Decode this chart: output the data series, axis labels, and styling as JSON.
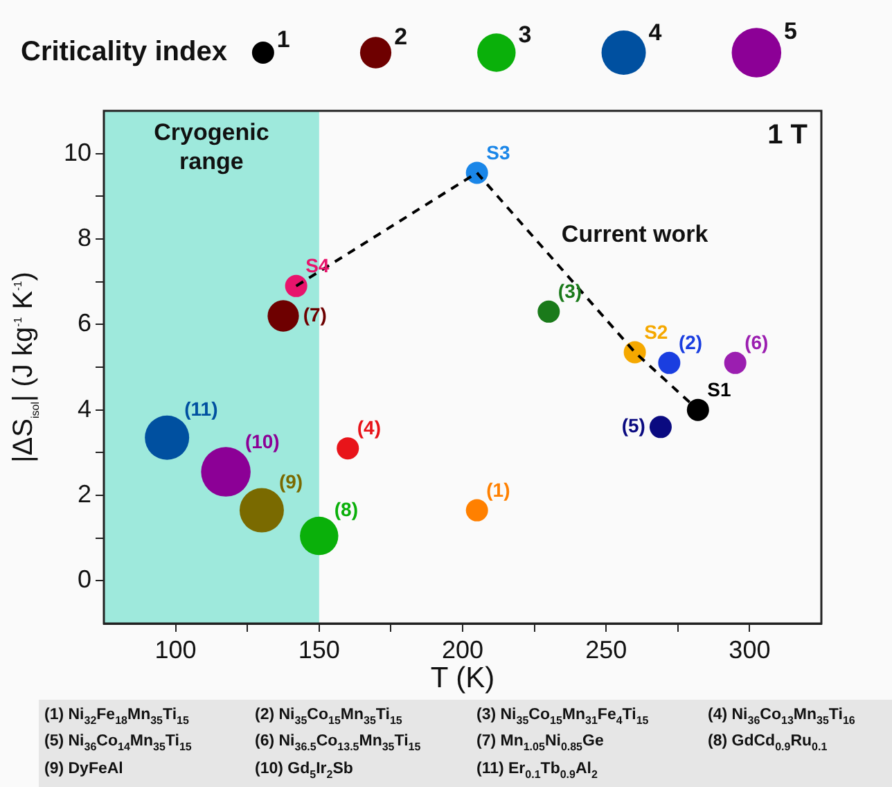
{
  "chart_data": {
    "type": "bubble",
    "legend_title": "Criticality index",
    "size_legend": [
      1,
      2,
      3,
      4,
      5
    ],
    "xlabel": "T (K)",
    "ylabel": "|ΔS$_{isol}$| (J kg$^{-1}$ K$^{-1}$)",
    "xlim": [
      75,
      325
    ],
    "xticks": [
      100,
      {
        "value": 125,
        "label": null
      },
      150,
      {
        "value": 175,
        "label": null
      },
      200,
      {
        "value": 225,
        "label": null
      },
      250,
      {
        "value": 275,
        "label": null
      },
      300
    ],
    "ylim": [
      -1,
      11
    ],
    "yticks": [
      0,
      {
        "value": 1,
        "label": null
      },
      2,
      {
        "value": 3,
        "label": null
      },
      4,
      {
        "value": 5,
        "label": null
      },
      6,
      {
        "value": 7,
        "label": null
      },
      8,
      {
        "value": 9,
        "label": null
      },
      10
    ],
    "grid": false,
    "legend": "top",
    "bands": [
      {
        "axis": "x",
        "from": 75,
        "to": 150,
        "label": "Cryogenic range",
        "color": "#9ee9dc"
      }
    ],
    "series": [
      {
        "type": "line",
        "color": "#000000",
        "x": [
          142,
          205,
          260,
          282
        ],
        "values": [
          6.9,
          9.55,
          5.35,
          4.0
        ],
        "line_style": "dashed",
        "marker": "none"
      },
      {
        "name": "S1",
        "color": "#000000",
        "x": [
          282
        ],
        "values": [
          4.0
        ],
        "sizes": [
          1
        ],
        "marker": "circle"
      },
      {
        "name": "S2",
        "color": "#f5a800",
        "x": [
          260
        ],
        "values": [
          5.35
        ],
        "sizes": [
          1
        ],
        "marker": "circle"
      },
      {
        "name": "S3",
        "color": "#1a86e8",
        "x": [
          205
        ],
        "values": [
          9.55
        ],
        "sizes": [
          1
        ],
        "marker": "circle"
      },
      {
        "name": "S4",
        "color": "#e8146c",
        "x": [
          142
        ],
        "values": [
          6.9
        ],
        "sizes": [
          1
        ],
        "marker": "circle"
      },
      {
        "name": "(11)",
        "color": "#0050a0",
        "x": [
          97
        ],
        "values": [
          3.35
        ],
        "sizes": [
          4
        ],
        "marker": "circle"
      },
      {
        "name": "(9)",
        "color": "#7a6a00",
        "x": [
          130
        ],
        "values": [
          1.65
        ],
        "sizes": [
          4
        ],
        "marker": "circle"
      },
      {
        "name": "(10)",
        "color": "#8c0096",
        "x": [
          117.5
        ],
        "values": [
          2.55
        ],
        "sizes": [
          5
        ],
        "marker": "circle"
      },
      {
        "name": "(8)",
        "color": "#0ab00a",
        "x": [
          150
        ],
        "values": [
          1.05
        ],
        "sizes": [
          3
        ],
        "marker": "circle"
      },
      {
        "name": "(7)",
        "color": "#6e0000",
        "x": [
          137.5
        ],
        "values": [
          6.2
        ],
        "sizes": [
          2
        ],
        "marker": "circle"
      },
      {
        "name": "(1)",
        "color": "#ff8000",
        "x": [
          205
        ],
        "values": [
          1.65
        ],
        "sizes": [
          1
        ],
        "marker": "circle"
      },
      {
        "name": "(2)",
        "color": "#1a3ee0",
        "x": [
          272
        ],
        "values": [
          5.1
        ],
        "sizes": [
          1
        ],
        "marker": "circle"
      },
      {
        "name": "(3)",
        "color": "#1a7a1a",
        "x": [
          230
        ],
        "values": [
          6.3
        ],
        "sizes": [
          1
        ],
        "marker": "circle"
      },
      {
        "name": "(4)",
        "color": "#e8141a",
        "x": [
          160
        ],
        "values": [
          3.1
        ],
        "sizes": [
          1
        ],
        "marker": "circle"
      },
      {
        "name": "(5)",
        "color": "#0a0a80",
        "x": [
          269
        ],
        "values": [
          3.6
        ],
        "sizes": [
          1
        ],
        "marker": "circle"
      },
      {
        "name": "(6)",
        "color": "#9b1eb0",
        "x": [
          295
        ],
        "values": [
          5.1
        ],
        "sizes": [
          1
        ],
        "marker": "circle"
      }
    ],
    "annotations": [
      "1 T",
      "Current work",
      "(1) Ni$_{32}$Fe$_{18}$Mn$_{35}$Ti$_{15}$",
      "(2) Ni$_{35}$Co$_{15}$Mn$_{35}$Ti$_{15}$",
      "(3) Ni$_{35}$Co$_{15}$Mn$_{31}$Fe$_{4}$Ti$_{15}$",
      "(4) Ni$_{36}$Co$_{13}$Mn$_{35}$Ti$_{16}$",
      "(5) Ni$_{36}$Co$_{14}$Mn$_{35}$Ti$_{15}$",
      "(6) Ni$_{36.5}$Co$_{13.5}$Mn$_{35}$Ti$_{15}$",
      "(7) Mn$_{1.05}$Ni$_{0.85}$Ge",
      "(8) GdCd$_{0.9}$Ru$_{0.1}$",
      "(9) DyFeAl",
      "(10) Gd$_{5}$Ir$_{2}$Sb",
      "(11) Er$_{0.1}$Tb$_{0.9}$Al$_{2}$"
    ]
  }
}
